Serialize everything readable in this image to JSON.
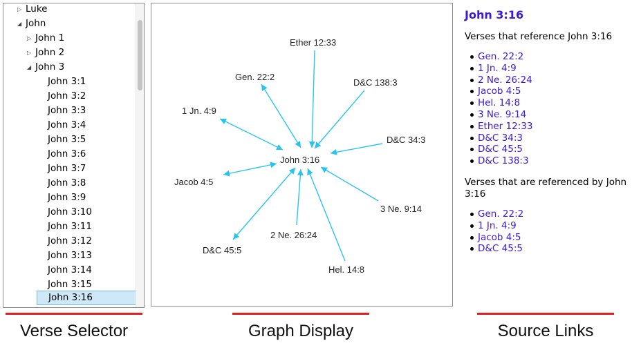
{
  "verse_selector": {
    "books": [
      {
        "label": "Luke",
        "expanded": false
      },
      {
        "label": "John",
        "expanded": true
      }
    ],
    "chapters": [
      {
        "label": "John 1",
        "expanded": false
      },
      {
        "label": "John 2",
        "expanded": false
      },
      {
        "label": "John 3",
        "expanded": true
      }
    ],
    "verses": [
      "John 3:1",
      "John 3:2",
      "John 3:3",
      "John 3:4",
      "John 3:5",
      "John 3:6",
      "John 3:7",
      "John 3:8",
      "John 3:9",
      "John 3:10",
      "John 3:11",
      "John 3:12",
      "John 3:13",
      "John 3:14",
      "John 3:15",
      "John 3:16"
    ],
    "selected": "John 3:16"
  },
  "graph": {
    "center": "John 3:16",
    "edge_color": "#29c4ee",
    "incoming": [
      "Ether 12:33",
      "D&C 138:3",
      "D&C 34:3",
      "3 Ne. 9:14",
      "Hel. 14:8",
      "2 Ne. 26:24",
      "Gen. 22:2",
      "1 Jn. 4:9",
      "Jacob 4:5",
      "D&C 45:5"
    ],
    "outgoing": [
      "Gen. 22:2",
      "1 Jn. 4:9",
      "Jacob 4:5",
      "D&C 45:5"
    ]
  },
  "source_links": {
    "title": "John 3:16",
    "reference_heading": "Verses that reference John 3:16",
    "reference_list": [
      "Gen. 22:2",
      "1 Jn. 4:9",
      "2 Ne. 26:24",
      "Jacob 4:5",
      "Hel. 14:8",
      "3 Ne. 9:14",
      "Ether 12:33",
      "D&C 34:3",
      "D&C 45:5",
      "D&C 138:3"
    ],
    "referenced_heading": "Verses that are referenced by John 3:16",
    "referenced_list": [
      "Gen. 22:2",
      "1 Jn. 4:9",
      "Jacob 4:5",
      "D&C 45:5"
    ],
    "link_color": "#3b18d6"
  },
  "captions": {
    "verse_selector": "Verse Selector",
    "graph_display": "Graph Display",
    "source_links": "Source Links"
  }
}
